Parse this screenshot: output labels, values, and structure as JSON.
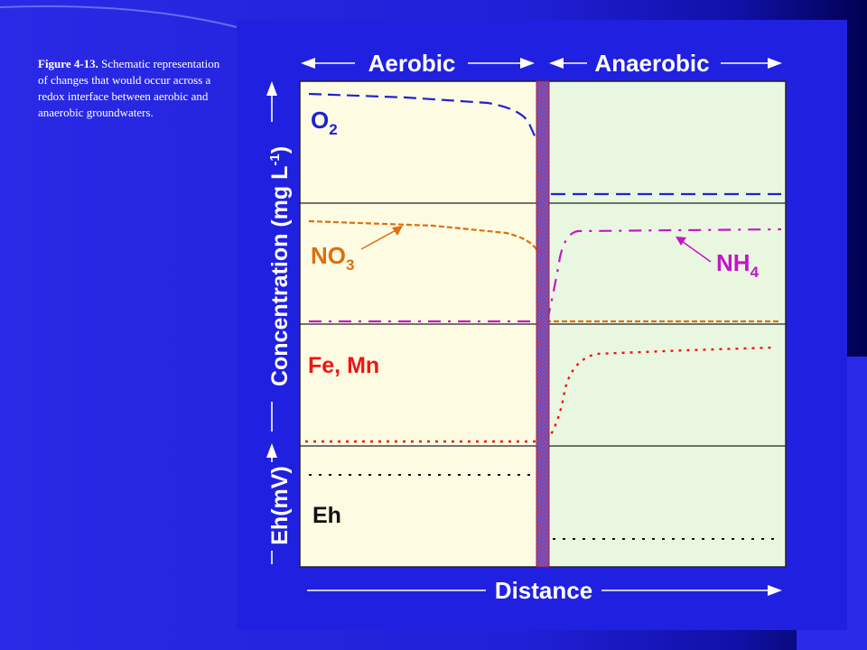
{
  "caption": {
    "figure_label": "Figure 4-13.",
    "text": "Schematic representation of changes that would occur across a redox interface between aerobic and anaerobic groundwaters."
  },
  "diagram": {
    "header_left": "Aerobic",
    "header_right": "Anaerobic",
    "y_axis_label": "Concentration (mg L",
    "y_axis_sup": "-1",
    "y_axis_close": ")",
    "y_axis2_label": "Eh(mV)",
    "x_axis_label": "Distance",
    "labels": {
      "o2": "O",
      "o2_sub": "2",
      "no3": "NO",
      "no3_sub": "3",
      "nh4": "NH",
      "nh4_sub": "4",
      "fe_mn": "Fe, Mn",
      "eh": "Eh"
    },
    "colors": {
      "aerobic_bg": "#fdfbe2",
      "anaerobic_bg": "#eaf7e0",
      "o2": "#1f22d0",
      "no3": "#dd6f10",
      "nh4": "#c416c8",
      "fe_mn": "#ee1515",
      "eh": "#111111",
      "interface": "#d83050"
    }
  }
}
